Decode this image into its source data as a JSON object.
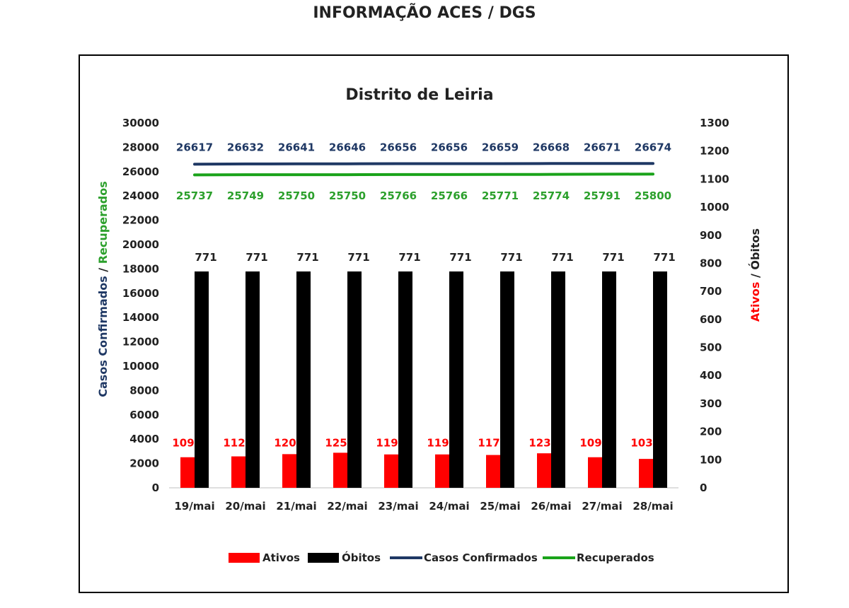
{
  "page": {
    "title": "INFORMAÇÃO ACES / DGS"
  },
  "chart_data": {
    "type": "bar",
    "title": "Distrito de Leiria",
    "categories": [
      "19/mai",
      "20/mai",
      "21/mai",
      "22/mai",
      "23/mai",
      "24/mai",
      "25/mai",
      "26/mai",
      "27/mai",
      "28/mai"
    ],
    "left_axis": {
      "title_parts": [
        {
          "text": "Casos Confirmados",
          "color": "#1f3864"
        },
        {
          "text": " / ",
          "color": "#222222"
        },
        {
          "text": "Recuperados",
          "color": "#2ca02c"
        }
      ],
      "ylim": [
        0,
        30000
      ],
      "ticks": [
        0,
        2000,
        4000,
        6000,
        8000,
        10000,
        12000,
        14000,
        16000,
        18000,
        20000,
        22000,
        24000,
        26000,
        28000,
        30000
      ]
    },
    "right_axis": {
      "title_parts": [
        {
          "text": "Ativos",
          "color": "#ff0000"
        },
        {
          "text": " / Óbitos",
          "color": "#222222"
        }
      ],
      "ylim": [
        0,
        1300
      ],
      "ticks": [
        0,
        100,
        200,
        300,
        400,
        500,
        600,
        700,
        800,
        900,
        1000,
        1100,
        1200,
        1300
      ]
    },
    "series": [
      {
        "name": "Ativos",
        "kind": "bar",
        "axis": "right",
        "color": "#ff0000",
        "label_color": "#ff0000",
        "values": [
          109,
          112,
          120,
          125,
          119,
          119,
          117,
          123,
          109,
          103
        ]
      },
      {
        "name": "Óbitos",
        "kind": "bar",
        "axis": "right",
        "color": "#000000",
        "label_color": "#222222",
        "values": [
          771,
          771,
          771,
          771,
          771,
          771,
          771,
          771,
          771,
          771
        ]
      },
      {
        "name": "Casos Confirmados",
        "kind": "line",
        "axis": "left",
        "color": "#1f3864",
        "label_color": "#1f3864",
        "values": [
          26617,
          26632,
          26641,
          26646,
          26656,
          26656,
          26659,
          26668,
          26671,
          26674
        ]
      },
      {
        "name": "Recuperados",
        "kind": "line",
        "axis": "left",
        "color": "#1aa31a",
        "label_color": "#2ca02c",
        "values": [
          25737,
          25749,
          25750,
          25750,
          25766,
          25766,
          25771,
          25774,
          25791,
          25800
        ]
      }
    ],
    "legend_placement": "bottom",
    "grid": false
  }
}
